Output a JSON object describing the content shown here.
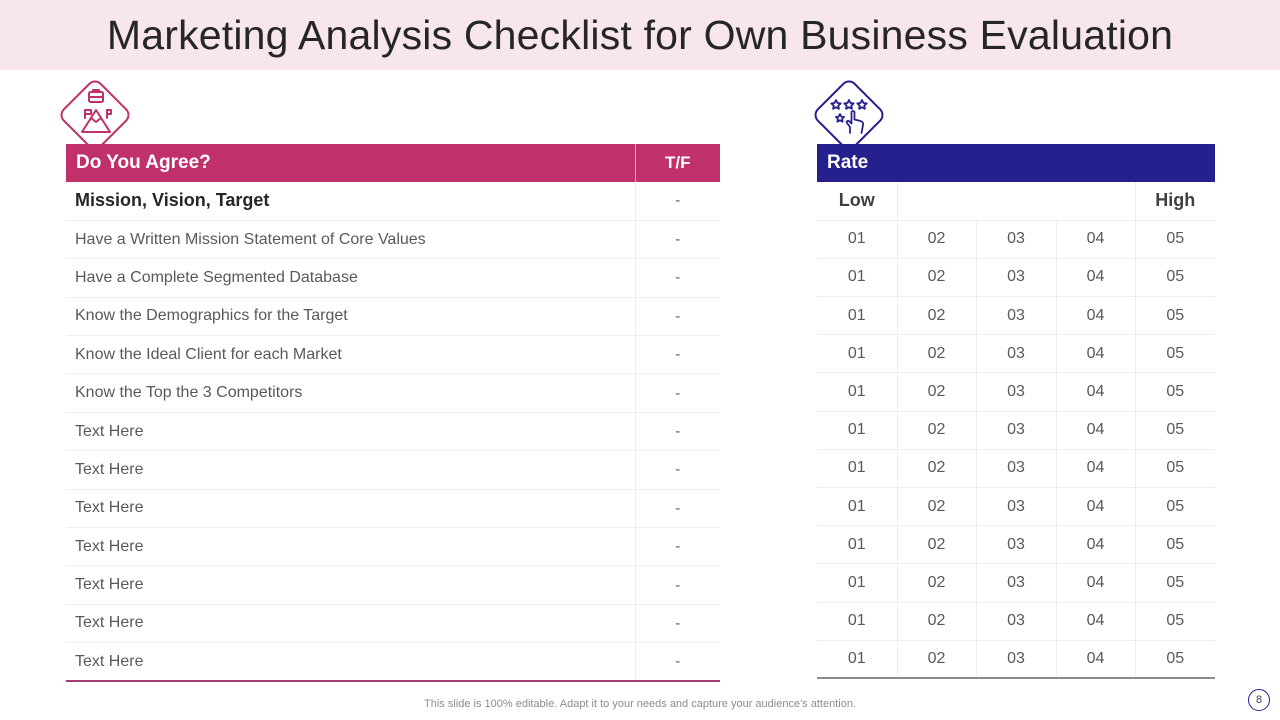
{
  "title": "Marketing Analysis Checklist for Own Business Evaluation",
  "colors": {
    "accent_pink": "#c0306a",
    "accent_navy": "#26208f",
    "title_bg": "#f7e6ee"
  },
  "icons": {
    "left": "mountain-flag-briefcase-icon",
    "right": "rating-stars-hand-icon"
  },
  "left_table": {
    "header": "Do You Agree?",
    "tf_header": "T/F",
    "rows": [
      {
        "label": "Mission, Vision, Target",
        "value": "-"
      },
      {
        "label": "Have a Written Mission Statement of Core Values",
        "value": "-"
      },
      {
        "label": "Have a Complete Segmented Database",
        "value": "-"
      },
      {
        "label": "Know the Demographics for the Target",
        "value": "-"
      },
      {
        "label": "Know the Ideal Client for each Market",
        "value": "-"
      },
      {
        "label": "Know the Top the 3 Competitors",
        "value": "-"
      },
      {
        "label": "Text Here",
        "value": "-"
      },
      {
        "label": "Text Here",
        "value": "-"
      },
      {
        "label": "Text Here",
        "value": "-"
      },
      {
        "label": "Text Here",
        "value": "-"
      },
      {
        "label": "Text Here",
        "value": "-"
      },
      {
        "label": "Text Here",
        "value": "-"
      },
      {
        "label": "Text Here",
        "value": "-"
      }
    ]
  },
  "right_table": {
    "header": "Rate",
    "low_label": "Low",
    "high_label": "High",
    "scale": [
      "01",
      "02",
      "03",
      "04",
      "05"
    ],
    "row_count": 12
  },
  "footer": "This slide is 100% editable. Adapt it to your needs and capture your audience's attention.",
  "page_number": "8"
}
